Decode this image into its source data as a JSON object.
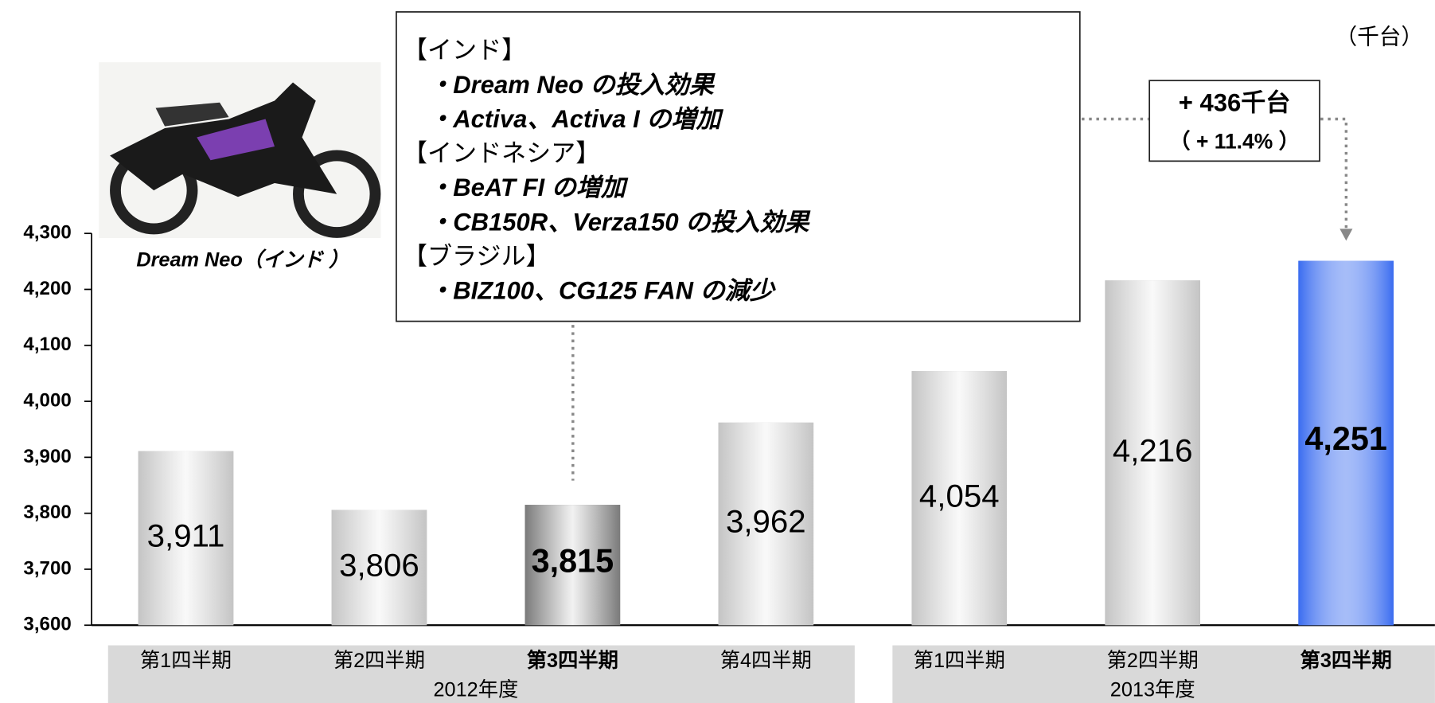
{
  "chart_data": {
    "type": "bar",
    "unit_label": "（千台）",
    "categories": [
      "第1四半期",
      "第2四半期",
      "第3四半期",
      "第4四半期",
      "第1四半期",
      "第2四半期",
      "第3四半期"
    ],
    "category_groups": [
      "2012年度",
      "2012年度",
      "2012年度",
      "2012年度",
      "2013年度",
      "2013年度",
      "2013年度"
    ],
    "values": [
      3911,
      3806,
      3815,
      3962,
      4054,
      4216,
      4251
    ],
    "value_labels": [
      "3,911",
      "3,806",
      "3,815",
      "3,962",
      "4,054",
      "4,216",
      "4,251"
    ],
    "colors": [
      "#c4c4c4",
      "#c4c4c4",
      "#7a7a7a",
      "#c4c4c4",
      "#c4c4c4",
      "#c4c4c4",
      "#3a6cf0"
    ],
    "bold": [
      false,
      false,
      true,
      false,
      false,
      false,
      true
    ],
    "ylim": [
      3600,
      4300
    ],
    "yticks": [
      {
        "value": 3600,
        "label": "3,600"
      },
      {
        "value": 3700,
        "label": "3,700"
      },
      {
        "value": 3800,
        "label": "3,800"
      },
      {
        "value": 3900,
        "label": "3,900"
      },
      {
        "value": 4000,
        "label": "4,000"
      },
      {
        "value": 4100,
        "label": "4,100"
      },
      {
        "value": 4200,
        "label": "4,200"
      },
      {
        "value": 4300,
        "label": "4,300"
      }
    ],
    "image_caption": "Dream Neo（インド ）",
    "annotation_lines": [
      "【インド】",
      "・Dream Neo の投入効果",
      "・Activa、Activa I の増加",
      "【インドネシア】",
      "・BeAT FI の増加",
      "・CB150R、Verza150 の投入効果",
      "【ブラジル】",
      "・BIZ100、CG125 FAN の減少"
    ],
    "change_labels": [
      "+ 436千台",
      "（ + 11.4% ）"
    ]
  }
}
